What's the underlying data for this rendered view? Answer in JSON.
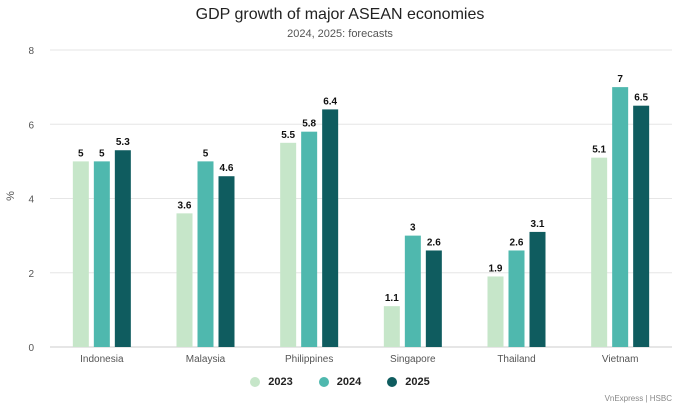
{
  "chart_data": {
    "type": "bar",
    "title": "GDP growth of major ASEAN economies",
    "subtitle": "2024, 2025: forecasts",
    "ylabel": "%",
    "xlabel": "",
    "ylim": [
      0,
      8
    ],
    "yticks": [
      0,
      2,
      4,
      6,
      8
    ],
    "grid": true,
    "legend_position": "bottom",
    "categories": [
      "Indonesia",
      "Malaysia",
      "Philippines",
      "Singapore",
      "Thailand",
      "Vietnam"
    ],
    "series": [
      {
        "name": "2023",
        "color": "#c6e6c9",
        "values": [
          5,
          3.6,
          5.5,
          1.1,
          1.9,
          5.1
        ]
      },
      {
        "name": "2024",
        "color": "#4fb8ae",
        "values": [
          5,
          5,
          5.8,
          3,
          2.6,
          7
        ]
      },
      {
        "name": "2025",
        "color": "#0f5c5f",
        "values": [
          5.3,
          4.6,
          6.4,
          2.6,
          3.1,
          6.5
        ]
      }
    ]
  },
  "source": "VnExpress | HSBC"
}
